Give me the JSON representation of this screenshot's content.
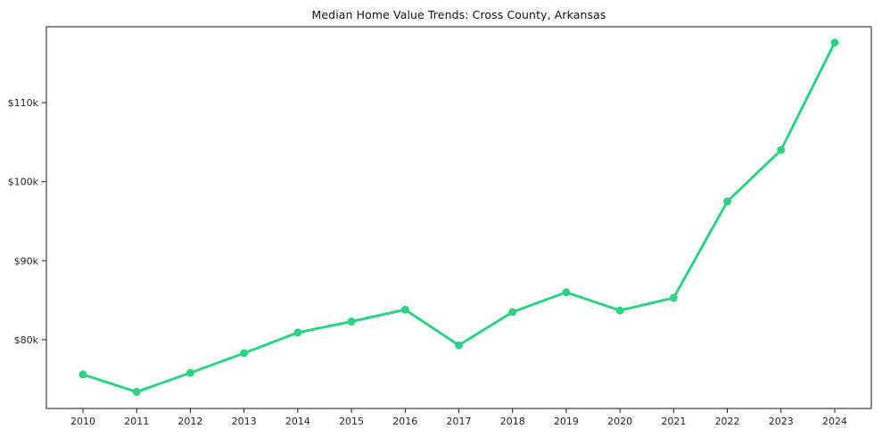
{
  "chart_data": {
    "type": "line",
    "title": "Median Home Value Trends: Cross County, Arkansas",
    "xlabel": "",
    "ylabel": "",
    "x": [
      2010,
      2011,
      2012,
      2013,
      2014,
      2015,
      2016,
      2017,
      2018,
      2019,
      2020,
      2021,
      2022,
      2023,
      2024
    ],
    "series": [
      {
        "name": "Median Home Value",
        "values": [
          75600,
          73400,
          75800,
          78300,
          80900,
          82300,
          83800,
          79300,
          83500,
          86000,
          83700,
          85300,
          97500,
          104000,
          117600
        ]
      }
    ],
    "ylim": [
      71300,
      119600
    ],
    "yticks": [
      80000,
      90000,
      100000,
      110000
    ],
    "ytick_labels": [
      "$80k",
      "$90k",
      "$100k",
      "$110k"
    ],
    "grid": false,
    "legend": "none",
    "line_color": "#2fd285",
    "marker_color": "#2fd285",
    "axis_color": "#1a1a1a",
    "tick_label_color": "#262626"
  }
}
